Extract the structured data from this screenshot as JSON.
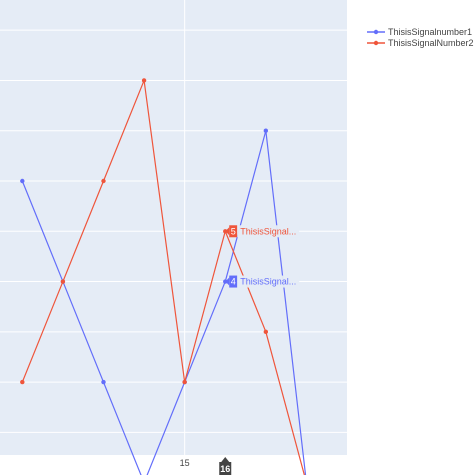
{
  "chart_data": {
    "type": "line",
    "x": [
      11,
      12,
      13,
      14,
      15,
      16,
      17,
      18
    ],
    "xlim": [
      10.45,
      19.0
    ],
    "ylim": [
      0.55,
      9.6
    ],
    "x_ticks": [
      {
        "value": 15,
        "label": "15"
      }
    ],
    "grid": true,
    "legend_position": "top-right",
    "series": [
      {
        "name": "ThisisSignalnumber1",
        "color": "#636EFA",
        "values": [
          6,
          4,
          2,
          0,
          2,
          4,
          7,
          0
        ]
      },
      {
        "name": "ThisisSignalNumber2",
        "color": "#EF553B",
        "values": [
          2,
          4,
          6,
          8,
          2,
          5,
          3,
          0
        ]
      }
    ],
    "hover": {
      "x_label": "16",
      "labels": [
        {
          "series_index": 1,
          "value": "5",
          "text": "ThisisSignal..."
        },
        {
          "series_index": 0,
          "value": "4",
          "text": "ThisisSignal..."
        }
      ]
    }
  }
}
